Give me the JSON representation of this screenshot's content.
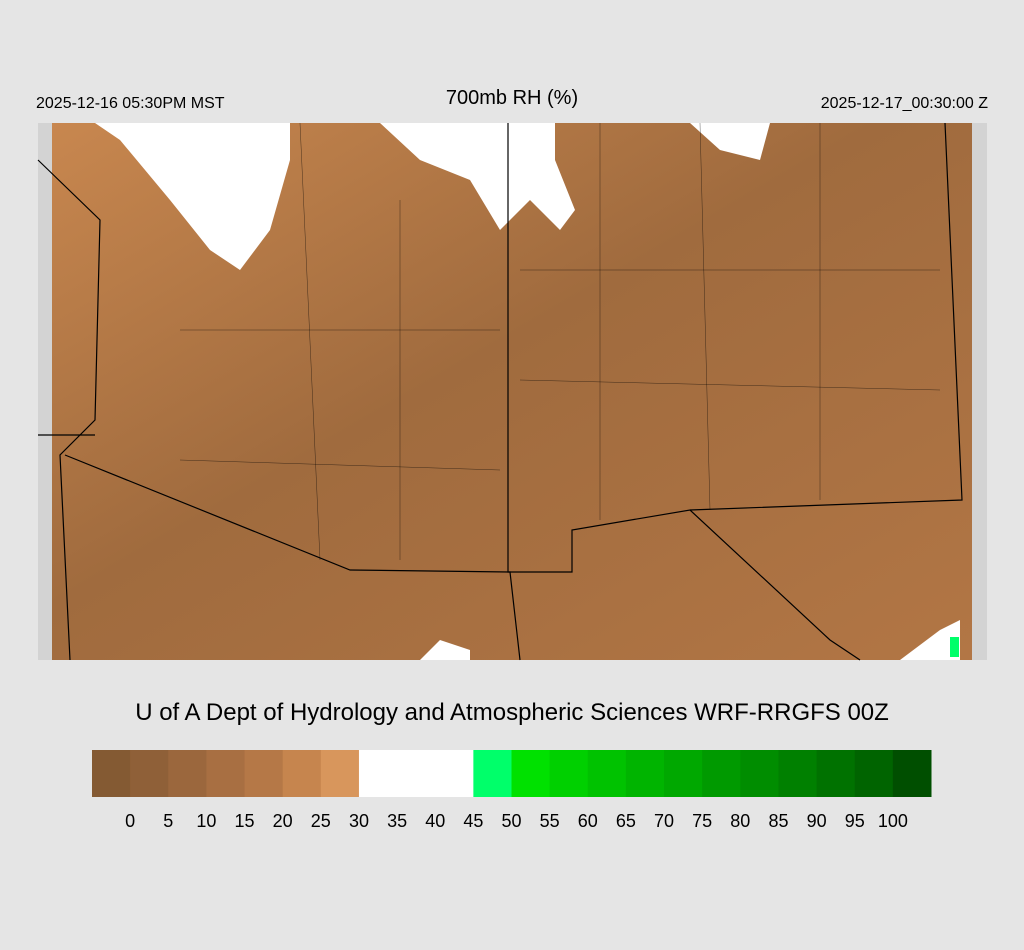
{
  "header": {
    "left": "2025-12-16 05:30PM MST",
    "title": "700mb RH (%)",
    "right": "2025-12-17_00:30:00 Z"
  },
  "credit": "U of A Dept of Hydrology and Atmospheric Sciences WRF-RRGFS 00Z",
  "colorbar": {
    "labels": [
      0,
      5,
      10,
      15,
      20,
      25,
      30,
      35,
      40,
      45,
      50,
      55,
      60,
      65,
      70,
      75,
      80,
      85,
      90,
      95,
      100
    ],
    "colors": [
      "#845a33",
      "#8f6038",
      "#9b673d",
      "#a86f42",
      "#b57847",
      "#c6854e",
      "#d8965c",
      "#ffffff",
      "#ffffff",
      "#ffffff",
      "#00ff6a",
      "#00e100",
      "#00d000",
      "#00c200",
      "#00b400",
      "#00a800",
      "#009a00",
      "#008d00",
      "#008000",
      "#007200",
      "#006400",
      "#004f00"
    ]
  }
}
